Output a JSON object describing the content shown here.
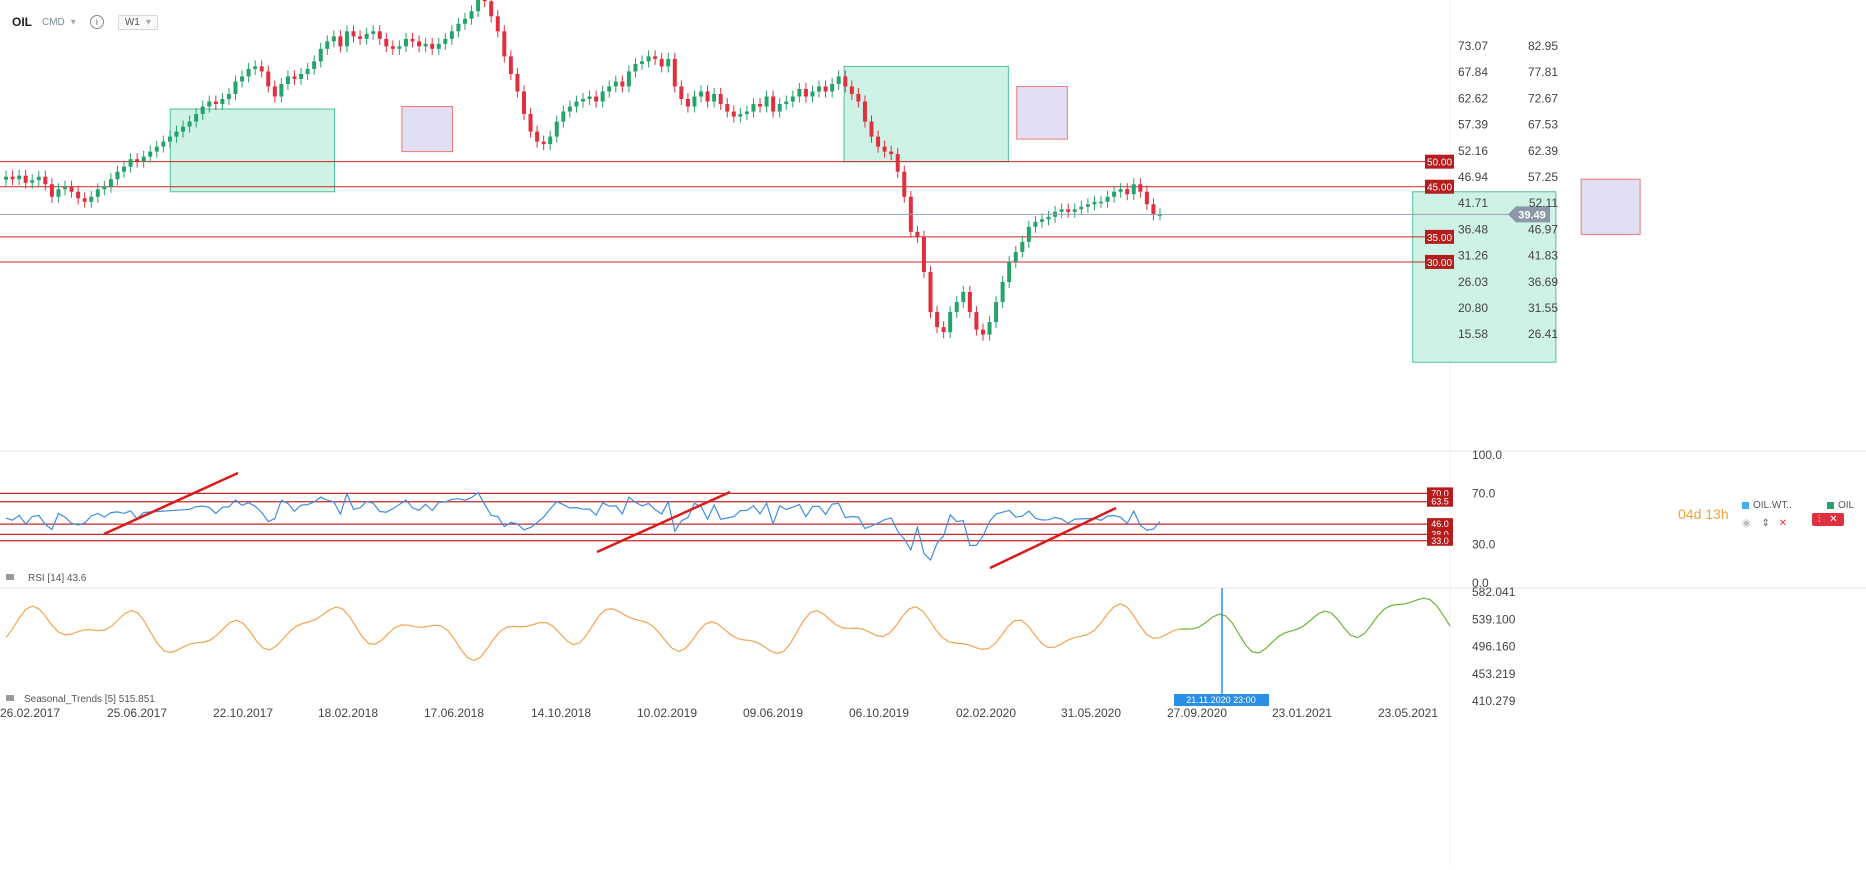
{
  "header": {
    "symbol": "OIL",
    "market": "CMD",
    "timeframe": "W1"
  },
  "timer": {
    "days": "04d",
    "hours": "13h"
  },
  "legend": {
    "secondary_symbol": "OIL.WT..",
    "primary_symbol": "OIL"
  },
  "colors": {
    "bull": "#26a36a",
    "bear": "#e0303f",
    "level_line": "#c62828",
    "level_tag": "#b71c1c",
    "rsi_line": "#3d8fe0",
    "seasonal_past": "#f2a450",
    "seasonal_future": "#6fb33a",
    "highlight_green": "#bfeedd",
    "highlight_purple": "#d8d4f0"
  },
  "chart_data": [
    {
      "type": "candlestick",
      "title": "OIL",
      "price_axis_left_ticks": [
        "73.07",
        "67.84",
        "62.62",
        "57.39",
        "52.16",
        "46.94",
        "41.71",
        "36.48",
        "31.26",
        "26.03",
        "20.80",
        "15.58"
      ],
      "price_axis_right_ticks": [
        "82.95",
        "77.81",
        "72.67",
        "67.53",
        "62.39",
        "57.25",
        "52.11",
        "46.97",
        "41.83",
        "36.69",
        "31.55",
        "26.41"
      ],
      "current_price": "39.49",
      "horizontal_levels": [
        "50.00",
        "45.00",
        "35.00",
        "30.00"
      ],
      "x_ticks": [
        "26.02.2017",
        "25.06.2017",
        "22.10.2017",
        "18.02.2018",
        "17.06.2018",
        "14.10.2018",
        "10.02.2019",
        "09.06.2019",
        "06.10.2019",
        "02.02.2020",
        "31.05.2020",
        "27.09.2020",
        "23.01.2021",
        "23.05.2021"
      ],
      "series_closes": [
        47,
        46.5,
        47.2,
        45.8,
        46.3,
        47,
        45.5,
        43,
        44.5,
        45,
        44,
        42.7,
        42,
        43,
        44.5,
        45,
        46.5,
        48,
        49,
        50.5,
        50,
        51,
        52,
        53,
        54,
        55,
        56,
        57,
        58,
        59.5,
        61,
        62,
        61.5,
        62.5,
        63.5,
        66,
        67,
        68.5,
        69,
        68,
        65,
        63,
        65.5,
        67,
        66.5,
        67.5,
        68.5,
        70,
        72.5,
        74,
        75,
        73,
        76,
        75,
        74.5,
        75.5,
        76,
        74.5,
        73,
        72.5,
        73,
        74.5,
        74,
        73,
        73.5,
        72.5,
        73.5,
        74.5,
        76,
        77.5,
        78.5,
        80,
        82.5,
        82,
        79,
        76,
        71,
        67.5,
        64,
        59.5,
        56,
        54,
        53.5,
        55,
        58,
        60,
        61,
        62,
        62.5,
        63,
        62,
        64,
        65,
        66,
        65,
        68,
        69.5,
        70,
        71,
        70.5,
        69,
        70.5,
        65,
        62.5,
        61,
        63,
        64,
        62,
        63.5,
        61.5,
        60,
        59,
        59.5,
        60,
        61.5,
        61,
        63,
        60,
        61.5,
        62,
        63,
        64.5,
        63,
        64,
        65,
        64,
        65.5,
        67,
        65,
        63.5,
        62,
        58,
        55,
        53,
        52,
        51.5,
        48,
        43
      ],
      "rsi": {
        "label": "RSI [14]",
        "value": "43.6",
        "axis_ticks": [
          "100.0",
          "70.0",
          "30.0",
          "0.0"
        ],
        "levels": [
          "70.0",
          "63.5",
          "46.0",
          "38.0",
          "33.0"
        ]
      },
      "seasonal": {
        "label": "Seasonal_Trends [5]",
        "value": "515.851",
        "axis_ticks": [
          "582.041",
          "539.100",
          "496.160",
          "453.219",
          "410.279"
        ],
        "crosshair_date": "21.11.2020 23:00"
      }
    }
  ]
}
